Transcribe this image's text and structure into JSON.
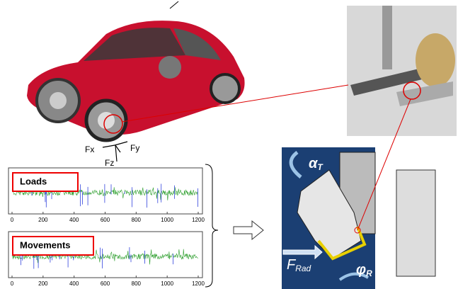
{
  "force_axes": {
    "x": "Fx",
    "y": "Fy",
    "z": "Fz"
  },
  "plots": [
    {
      "label": "Loads",
      "xticks": [
        0,
        200,
        400,
        600,
        800,
        1000,
        1200
      ]
    },
    {
      "label": "Movements",
      "xticks": [
        0,
        200,
        400,
        600,
        800,
        1000,
        1200
      ]
    }
  ],
  "cad_labels": {
    "torque": {
      "symbol": "α",
      "subscript": "T"
    },
    "radial_force": {
      "symbol": "F",
      "subscript": "Rad"
    },
    "rotation": {
      "symbol": "φ",
      "subscript": "R"
    }
  }
}
